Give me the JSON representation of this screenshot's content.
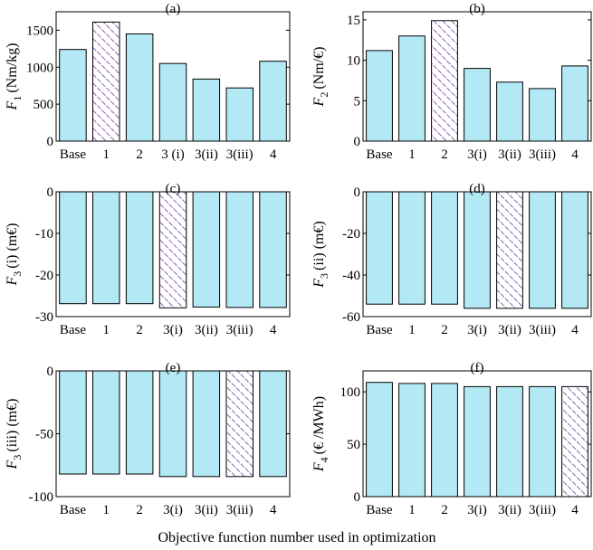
{
  "figure": {
    "xlabel": "Objective function number used in optimization"
  },
  "style": {
    "bar_fill": "#b3e9f5",
    "bar_stroke": "#000000",
    "hatch_color": "#7b52ab"
  },
  "chart_data": [
    {
      "type": "bar",
      "panel_label": "(a)",
      "ylabel_main": "F",
      "ylabel_sub": "1",
      "ylabel_suffix": "(Nm/kg)",
      "categories": [
        "Base",
        "1",
        "2",
        "3 (i)",
        "3(ii)",
        "3(iii)",
        "4"
      ],
      "values": [
        1240,
        1610,
        1450,
        1050,
        840,
        720,
        1080
      ],
      "highlight_index": 1,
      "ylim": [
        0,
        1750
      ],
      "yticks": [
        0,
        500,
        1000,
        1500
      ]
    },
    {
      "type": "bar",
      "panel_label": "(b)",
      "ylabel_main": "F",
      "ylabel_sub": "2",
      "ylabel_suffix": "(Nm/€)",
      "categories": [
        "Base",
        "1",
        "2",
        "3(i)",
        "3(ii)",
        "3(iii)",
        "4"
      ],
      "values": [
        11.2,
        13.0,
        14.9,
        9.0,
        7.3,
        6.5,
        9.3
      ],
      "highlight_index": 2,
      "ylim": [
        0,
        16
      ],
      "yticks": [
        0,
        5,
        10,
        15
      ]
    },
    {
      "type": "bar",
      "panel_label": "(c)",
      "ylabel_main": "F",
      "ylabel_sub": "3",
      "ylabel_suffix": "(i) (m€)",
      "categories": [
        "Base",
        "1",
        "2",
        "3(i)",
        "3(ii)",
        "3(iii)",
        "4"
      ],
      "values": [
        -26.9,
        -26.9,
        -26.9,
        -27.9,
        -27.7,
        -27.8,
        -27.8
      ],
      "highlight_index": 3,
      "ylim": [
        -30,
        0
      ],
      "yticks": [
        0,
        -10,
        -20,
        -30
      ]
    },
    {
      "type": "bar",
      "panel_label": "(d)",
      "ylabel_main": "F",
      "ylabel_sub": "3",
      "ylabel_suffix": "(ii) (m€)",
      "categories": [
        "Base",
        "1",
        "2",
        "3(i)",
        "3(ii)",
        "3(iii)",
        "4"
      ],
      "values": [
        -54,
        -54,
        -54,
        -56,
        -56,
        -56,
        -56
      ],
      "highlight_index": 4,
      "ylim": [
        -60,
        0
      ],
      "yticks": [
        0,
        -20,
        -40,
        -60
      ]
    },
    {
      "type": "bar",
      "panel_label": "(e)",
      "ylabel_main": "F",
      "ylabel_sub": "3",
      "ylabel_suffix": "(iii) (m€)",
      "categories": [
        "Base",
        "1",
        "2",
        "3(i)",
        "3(ii)",
        "3(iii)",
        "4"
      ],
      "values": [
        -82,
        -82,
        -82,
        -84,
        -84,
        -84,
        -84
      ],
      "highlight_index": 5,
      "ylim": [
        -100,
        0
      ],
      "yticks": [
        0,
        -50,
        -100
      ]
    },
    {
      "type": "bar",
      "panel_label": "(f)",
      "ylabel_main": "F",
      "ylabel_sub": "4",
      "ylabel_suffix": "(€ /MWh)",
      "categories": [
        "Base",
        "1",
        "2",
        "3(i)",
        "3(ii)",
        "3(iii)",
        "4"
      ],
      "values": [
        109,
        108,
        108,
        105,
        105,
        105,
        105
      ],
      "highlight_index": 6,
      "ylim": [
        0,
        120
      ],
      "yticks": [
        0,
        50,
        100
      ]
    }
  ]
}
